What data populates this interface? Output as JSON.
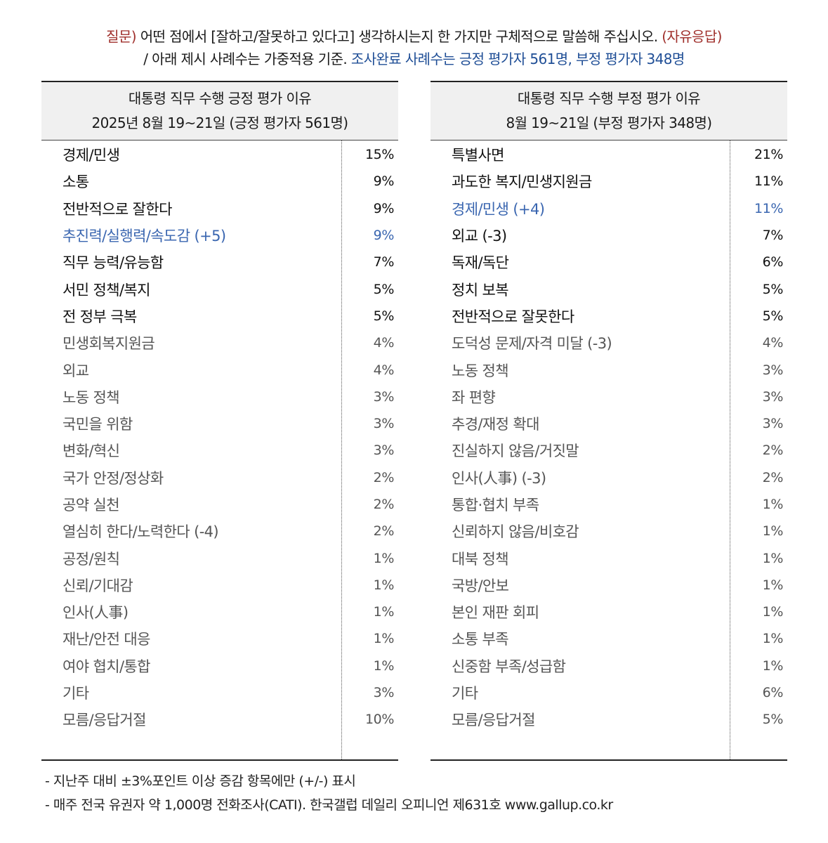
{
  "question": {
    "prefix": "질문)",
    "text": " 어떤 점에서 [잘하고/잘못하고 있다고] 생각하시는지 한 가지만 구체적으로 말씀해 주십시오. ",
    "tag": "(자유응답)",
    "line2_plain": "/ 아래 제시 사례수는 가중적용 기준. ",
    "line2_blue": "조사완료 사례수는 긍정 평가자 561명, 부정 평가자 348명"
  },
  "positive": {
    "title": "대통령 직무 수행 긍정 평가 이유",
    "subtitle": "2025년 8월 19~21일 (긍정 평가자 561명)",
    "items": [
      {
        "label": "경제/민생",
        "value": "15%",
        "style": "strong"
      },
      {
        "label": "소통",
        "value": "9%",
        "style": "strong"
      },
      {
        "label": "전반적으로 잘한다",
        "value": "9%",
        "style": "strong"
      },
      {
        "label": "추진력/실행력/속도감 (+5)",
        "value": "9%",
        "style": "up"
      },
      {
        "label": "직무 능력/유능함",
        "value": "7%",
        "style": "strong"
      },
      {
        "label": "서민 정책/복지",
        "value": "5%",
        "style": "strong"
      },
      {
        "label": "전 정부 극복",
        "value": "5%",
        "style": "strong"
      },
      {
        "label": "민생회복지원금",
        "value": "4%",
        "style": "muted"
      },
      {
        "label": "외교",
        "value": "4%",
        "style": "muted"
      },
      {
        "label": "노동 정책",
        "value": "3%",
        "style": "muted"
      },
      {
        "label": "국민을 위함",
        "value": "3%",
        "style": "muted"
      },
      {
        "label": "변화/혁신",
        "value": "3%",
        "style": "muted"
      },
      {
        "label": "국가 안정/정상화",
        "value": "2%",
        "style": "muted"
      },
      {
        "label": "공약 실천",
        "value": "2%",
        "style": "muted"
      },
      {
        "label": "열심히 한다/노력한다 (-4)",
        "value": "2%",
        "style": "muted"
      },
      {
        "label": "공정/원칙",
        "value": "1%",
        "style": "muted"
      },
      {
        "label": "신뢰/기대감",
        "value": "1%",
        "style": "muted"
      },
      {
        "label": "인사(人事)",
        "value": "1%",
        "style": "muted"
      },
      {
        "label": "재난/안전 대응",
        "value": "1%",
        "style": "muted"
      },
      {
        "label": "여야 협치/통합",
        "value": "1%",
        "style": "muted"
      },
      {
        "label": "기타",
        "value": "3%",
        "style": "muted"
      },
      {
        "label": "모름/응답거절",
        "value": "10%",
        "style": "muted"
      }
    ]
  },
  "negative": {
    "title": "대통령 직무 수행 부정 평가 이유",
    "subtitle": "8월 19~21일 (부정 평가자 348명)",
    "items": [
      {
        "label": "특별사면",
        "value": "21%",
        "style": "strong"
      },
      {
        "label": "과도한 복지/민생지원금",
        "value": "11%",
        "style": "strong"
      },
      {
        "label": "경제/민생 (+4)",
        "value": "11%",
        "style": "up"
      },
      {
        "label": "외교 (-3)",
        "value": "7%",
        "style": "strong"
      },
      {
        "label": "독재/독단",
        "value": "6%",
        "style": "strong"
      },
      {
        "label": "정치 보복",
        "value": "5%",
        "style": "strong"
      },
      {
        "label": "전반적으로 잘못한다",
        "value": "5%",
        "style": "strong"
      },
      {
        "label": "도덕성 문제/자격 미달 (-3)",
        "value": "4%",
        "style": "muted"
      },
      {
        "label": "노동 정책",
        "value": "3%",
        "style": "muted"
      },
      {
        "label": "좌 편향",
        "value": "3%",
        "style": "muted"
      },
      {
        "label": "추경/재정 확대",
        "value": "3%",
        "style": "muted"
      },
      {
        "label": "진실하지 않음/거짓말",
        "value": "2%",
        "style": "muted"
      },
      {
        "label": "인사(人事) (-3)",
        "value": "2%",
        "style": "muted"
      },
      {
        "label": "통합·협치 부족",
        "value": "1%",
        "style": "muted"
      },
      {
        "label": "신뢰하지 않음/비호감",
        "value": "1%",
        "style": "muted"
      },
      {
        "label": "대북 정책",
        "value": "1%",
        "style": "muted"
      },
      {
        "label": "국방/안보",
        "value": "1%",
        "style": "muted"
      },
      {
        "label": "본인 재판 회피",
        "value": "1%",
        "style": "muted"
      },
      {
        "label": "소통 부족",
        "value": "1%",
        "style": "muted"
      },
      {
        "label": "신중함 부족/성급함",
        "value": "1%",
        "style": "muted"
      },
      {
        "label": "기타",
        "value": "6%",
        "style": "muted"
      },
      {
        "label": "모름/응답거절",
        "value": "5%",
        "style": "muted"
      }
    ]
  },
  "notes": [
    "- 지난주 대비 ±3%포인트 이상 증감 항목에만 (+/-) 표시",
    "- 매주 전국 유권자 약 1,000명 전화조사(CATI). 한국갤럽 데일리 오피니언 제631호 www.gallup.co.kr"
  ]
}
